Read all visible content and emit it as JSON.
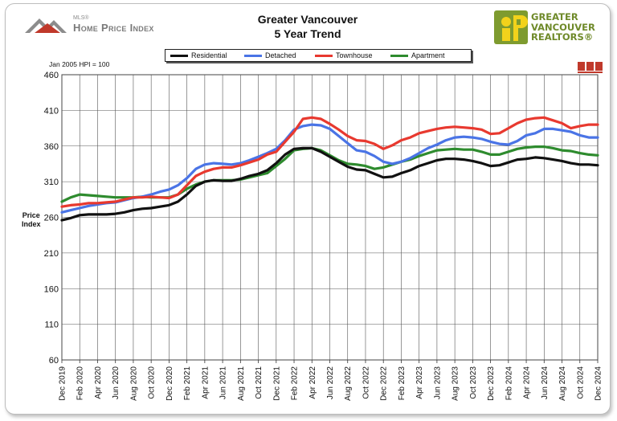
{
  "header": {
    "mls_small": "MLS®",
    "hpi_text": "Home Price Index",
    "title_line1": "Greater Vancouver",
    "title_line2": "5 Year Trend",
    "org_lines": [
      "GREATER",
      "VANCOUVER",
      "REALTORS®"
    ]
  },
  "base_note": "Jan 2005 HPI = 100",
  "colors": {
    "residential": "#111111",
    "detached": "#4a74e6",
    "townhouse": "#e8392f",
    "apartment": "#2e8b2e",
    "logo_green": "#7e9b2f"
  },
  "chart_data": {
    "type": "line",
    "title": "Greater Vancouver 5 Year Trend",
    "ylabel": "Price Index",
    "ylim": [
      60,
      460
    ],
    "yticks": [
      60,
      110,
      160,
      210,
      260,
      310,
      360,
      410,
      460
    ],
    "grid": true,
    "legend_position": "top",
    "x_tick_labels": [
      "Dec 2019",
      "Feb 2020",
      "Apr 2020",
      "Jun 2020",
      "Aug 2020",
      "Oct 2020",
      "Dec 2020",
      "Feb 2021",
      "Apr 2021",
      "Jun 2021",
      "Aug 2021",
      "Oct 2021",
      "Dec 2021",
      "Feb 2022",
      "Apr 2022",
      "Jun 2022",
      "Aug 2022",
      "Oct 2022",
      "Dec 2022",
      "Feb 2023",
      "Apr 2023",
      "Jun 2023",
      "Aug 2023",
      "Oct 2023",
      "Dec 2023",
      "Feb 2024",
      "Apr 2024",
      "Jun 2024",
      "Aug 2024",
      "Oct 2024",
      "Dec 2024"
    ],
    "x_start": "Dec 2019",
    "x_end": "Dec 2024",
    "series": [
      {
        "name": "Residential",
        "key": "residential",
        "values": [
          256,
          259,
          263,
          264,
          264,
          264,
          265,
          267,
          270,
          272,
          273,
          275,
          277,
          282,
          292,
          304,
          310,
          312,
          311,
          311,
          314,
          318,
          321,
          326,
          336,
          348,
          356,
          357,
          357,
          352,
          345,
          338,
          331,
          327,
          326,
          321,
          316,
          317,
          322,
          326,
          332,
          336,
          340,
          342,
          342,
          341,
          339,
          336,
          332,
          333,
          337,
          341,
          342,
          344,
          343,
          341,
          339,
          336,
          334,
          334,
          333
        ]
      },
      {
        "name": "Detached",
        "key": "detached",
        "values": [
          267,
          270,
          273,
          276,
          278,
          280,
          281,
          284,
          287,
          289,
          292,
          296,
          299,
          305,
          315,
          328,
          334,
          336,
          335,
          334,
          336,
          340,
          345,
          350,
          356,
          368,
          383,
          388,
          390,
          389,
          384,
          374,
          364,
          354,
          352,
          346,
          338,
          335,
          338,
          343,
          350,
          357,
          362,
          368,
          372,
          373,
          372,
          370,
          366,
          363,
          362,
          367,
          375,
          378,
          384,
          384,
          382,
          380,
          375,
          372,
          372
        ]
      },
      {
        "name": "Townhouse",
        "key": "townhouse",
        "values": [
          275,
          277,
          278,
          280,
          280,
          281,
          282,
          285,
          288,
          288,
          289,
          288,
          287,
          292,
          305,
          318,
          324,
          328,
          330,
          330,
          333,
          337,
          341,
          348,
          352,
          366,
          380,
          398,
          400,
          398,
          391,
          383,
          374,
          368,
          367,
          363,
          356,
          361,
          368,
          372,
          378,
          381,
          384,
          386,
          387,
          386,
          385,
          383,
          377,
          378,
          385,
          392,
          397,
          399,
          400,
          396,
          392,
          385,
          388,
          390,
          390
        ]
      },
      {
        "name": "Apartment",
        "key": "apartment",
        "values": [
          282,
          288,
          292,
          291,
          290,
          289,
          288,
          288,
          288,
          289,
          288,
          288,
          288,
          292,
          300,
          306,
          310,
          312,
          312,
          312,
          313,
          316,
          319,
          322,
          332,
          342,
          354,
          356,
          357,
          354,
          347,
          340,
          335,
          334,
          332,
          328,
          330,
          334,
          338,
          341,
          346,
          350,
          354,
          355,
          356,
          355,
          355,
          352,
          348,
          348,
          352,
          356,
          358,
          359,
          359,
          357,
          354,
          353,
          350,
          348,
          347
        ]
      }
    ]
  }
}
